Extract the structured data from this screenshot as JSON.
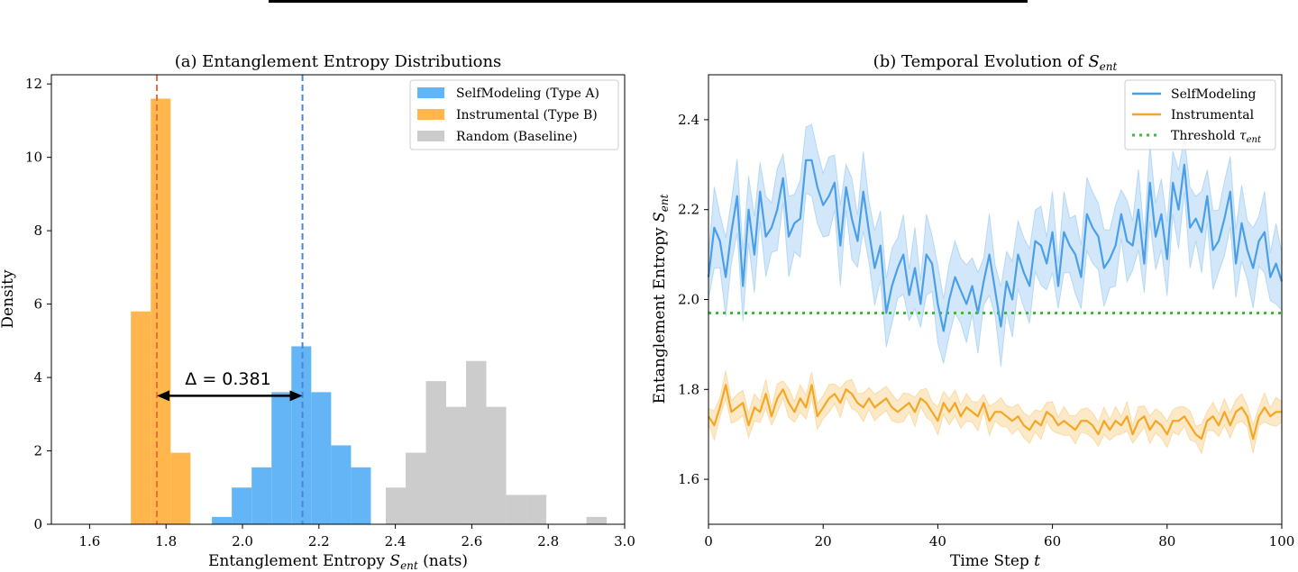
{
  "colors": {
    "self": "#4a9fe8",
    "self_bar": "#64b5f6",
    "inst": "#f5a623",
    "inst_bar": "#ffb74d",
    "rand": "#cccccc",
    "threshold": "#3dba3d",
    "vline_self": "#4a86d4",
    "vline_inst": "#e8703a"
  },
  "chart_data": [
    {
      "type": "bar",
      "subtype": "histogram",
      "title": "(a) Entanglement Entropy Distributions",
      "xlabel_main": "Entanglement Entropy ",
      "xlabel_sym": "S",
      "xlabel_sub": "ent",
      "xlabel_tail": " (nats)",
      "ylabel": "Density",
      "xlim": [
        1.5,
        3.0
      ],
      "ylim": [
        0,
        12.25
      ],
      "xticks": [
        "1.6",
        "1.8",
        "2.0",
        "2.2",
        "2.4",
        "2.6",
        "2.8",
        "3.0"
      ],
      "yticks": [
        "0",
        "2",
        "4",
        "6",
        "8",
        "10",
        "12"
      ],
      "legend": {
        "position": "top-right",
        "entries": [
          "SelfModeling (Type A)",
          "Instrumental (Type B)",
          "Random (Baseline)"
        ]
      },
      "series": [
        {
          "name": "Random (Baseline)",
          "bins": [
            {
              "x0": 2.215,
              "x1": 2.268,
              "v": 0.2
            },
            {
              "x0": 2.375,
              "x1": 2.427,
              "v": 1.0
            },
            {
              "x0": 2.427,
              "x1": 2.48,
              "v": 1.95
            },
            {
              "x0": 2.48,
              "x1": 2.533,
              "v": 3.9
            },
            {
              "x0": 2.533,
              "x1": 2.585,
              "v": 3.2
            },
            {
              "x0": 2.585,
              "x1": 2.638,
              "v": 4.45
            },
            {
              "x0": 2.638,
              "x1": 2.69,
              "v": 3.2
            },
            {
              "x0": 2.69,
              "x1": 2.743,
              "v": 0.8
            },
            {
              "x0": 2.743,
              "x1": 2.795,
              "v": 0.8
            },
            {
              "x0": 2.9,
              "x1": 2.953,
              "v": 0.2
            }
          ]
        },
        {
          "name": "SelfModeling (Type A)",
          "bins": [
            {
              "x0": 1.92,
              "x1": 1.972,
              "v": 0.2
            },
            {
              "x0": 1.972,
              "x1": 2.024,
              "v": 1.0
            },
            {
              "x0": 2.024,
              "x1": 2.076,
              "v": 1.55
            },
            {
              "x0": 2.076,
              "x1": 2.128,
              "v": 3.6
            },
            {
              "x0": 2.128,
              "x1": 2.18,
              "v": 4.85
            },
            {
              "x0": 2.18,
              "x1": 2.232,
              "v": 3.6
            },
            {
              "x0": 2.232,
              "x1": 2.284,
              "v": 2.15
            },
            {
              "x0": 2.284,
              "x1": 2.336,
              "v": 1.55
            }
          ]
        },
        {
          "name": "Instrumental (Type B)",
          "bins": [
            {
              "x0": 1.708,
              "x1": 1.76,
              "v": 5.8
            },
            {
              "x0": 1.76,
              "x1": 1.812,
              "v": 11.6
            },
            {
              "x0": 1.812,
              "x1": 1.864,
              "v": 1.95
            }
          ]
        }
      ],
      "mean_lines": {
        "inst": 1.776,
        "self": 2.157
      },
      "annotation": {
        "text": "Δ = 0.381",
        "y": 3.5,
        "x_from": 1.776,
        "x_to": 2.157
      }
    },
    {
      "type": "line",
      "title_prefix": "(b) Temporal Evolution of ",
      "title_sym": "S",
      "title_sub": "ent",
      "xlabel_main": "Time Step ",
      "xlabel_sym": "t",
      "ylabel_main": "Entanglement Entropy ",
      "ylabel_sym": "S",
      "ylabel_sub": "ent",
      "xlim": [
        0,
        100
      ],
      "ylim": [
        1.5,
        2.5
      ],
      "xticks": [
        "0",
        "20",
        "40",
        "60",
        "80",
        "100"
      ],
      "yticks": [
        "1.6",
        "1.8",
        "2.0",
        "2.2",
        "2.4"
      ],
      "threshold": 1.97,
      "legend": {
        "position": "top-right",
        "entries": [
          "SelfModeling",
          "Instrumental",
          "Threshold "
        ],
        "threshold_sym": "τ",
        "threshold_sub": "ent"
      },
      "series": [
        {
          "name": "SelfModeling",
          "band": 0.07,
          "values": [
            2.05,
            2.16,
            2.13,
            2.05,
            2.15,
            2.23,
            2.03,
            2.2,
            2.1,
            2.24,
            2.14,
            2.16,
            2.2,
            2.27,
            2.14,
            2.17,
            2.18,
            2.31,
            2.31,
            2.25,
            2.21,
            2.23,
            2.26,
            2.12,
            2.25,
            2.18,
            2.13,
            2.24,
            2.15,
            2.07,
            2.12,
            1.97,
            2.03,
            2.07,
            2.1,
            2.01,
            2.07,
            1.99,
            2.1,
            2.08,
            1.99,
            1.93,
            2.0,
            2.05,
            2.02,
            1.99,
            2.03,
            1.97,
            2.04,
            2.1,
            2.02,
            1.94,
            2.04,
            2.0,
            2.1,
            2.06,
            2.03,
            2.13,
            2.12,
            2.08,
            2.15,
            2.03,
            2.15,
            2.12,
            2.1,
            2.05,
            2.19,
            2.16,
            2.14,
            2.07,
            2.09,
            2.12,
            2.19,
            2.13,
            2.12,
            2.2,
            2.08,
            2.26,
            2.14,
            2.19,
            2.09,
            2.26,
            2.2,
            2.3,
            2.16,
            2.18,
            2.15,
            2.23,
            2.11,
            2.13,
            2.18,
            2.24,
            2.08,
            2.17,
            2.11,
            2.07,
            2.13,
            2.15,
            2.05,
            2.08,
            2.04
          ]
        },
        {
          "name": "Instrumental",
          "band": 0.025,
          "values": [
            1.74,
            1.72,
            1.76,
            1.81,
            1.75,
            1.76,
            1.77,
            1.72,
            1.76,
            1.75,
            1.79,
            1.74,
            1.78,
            1.8,
            1.77,
            1.75,
            1.78,
            1.76,
            1.81,
            1.74,
            1.76,
            1.78,
            1.79,
            1.77,
            1.8,
            1.79,
            1.77,
            1.76,
            1.78,
            1.76,
            1.77,
            1.78,
            1.76,
            1.75,
            1.76,
            1.77,
            1.75,
            1.78,
            1.77,
            1.75,
            1.73,
            1.77,
            1.75,
            1.77,
            1.74,
            1.76,
            1.75,
            1.74,
            1.77,
            1.73,
            1.75,
            1.75,
            1.74,
            1.73,
            1.74,
            1.72,
            1.71,
            1.73,
            1.72,
            1.75,
            1.74,
            1.72,
            1.73,
            1.72,
            1.71,
            1.73,
            1.73,
            1.72,
            1.7,
            1.73,
            1.71,
            1.73,
            1.72,
            1.74,
            1.7,
            1.73,
            1.74,
            1.71,
            1.73,
            1.72,
            1.7,
            1.73,
            1.73,
            1.74,
            1.72,
            1.7,
            1.69,
            1.73,
            1.74,
            1.72,
            1.75,
            1.72,
            1.75,
            1.76,
            1.74,
            1.69,
            1.74,
            1.76,
            1.74,
            1.75,
            1.75
          ]
        }
      ]
    }
  ]
}
